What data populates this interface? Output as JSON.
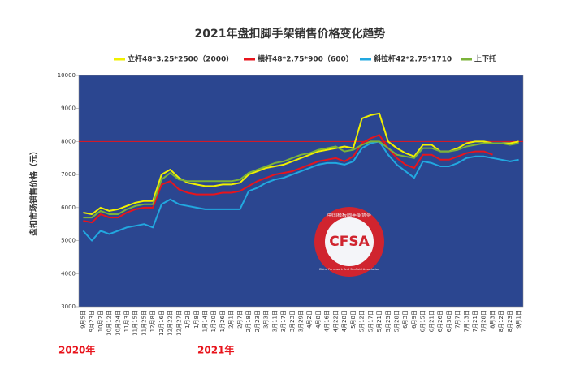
{
  "chart_data": {
    "type": "line",
    "title": "2021年盘扣脚手架销售价格变化趋势",
    "y_label": "盘扣市场销售价格（元）",
    "categories": [
      "9月5日",
      "9月23日",
      "10月2日",
      "10月12日",
      "10月24日",
      "11月3日",
      "11月15日",
      "11月25日",
      "12月8日",
      "12月16日",
      "12月22日",
      "12月27日",
      "1月2日",
      "1月8日",
      "1月14日",
      "1月20日",
      "1月26日",
      "2月1日",
      "2月7日",
      "2月18日",
      "2月23日",
      "3月3日",
      "3月11日",
      "3月17日",
      "3月23日",
      "3月29日",
      "4月2日",
      "4月8日",
      "4月16日",
      "4月22日",
      "4月28日",
      "5月8日",
      "5月12日",
      "5月17日",
      "5月21日",
      "5月25日",
      "5月28日",
      "6月3日",
      "6月9日",
      "6月15日",
      "6月21日",
      "6月26日",
      "6月30日",
      "7月7日",
      "7月13日",
      "7月21日",
      "7月28日",
      "8月3日",
      "8月12日",
      "8月23日",
      "9月1日"
    ],
    "series": [
      {
        "name": "立杆48*3.25*2500（2000）",
        "color": "#f0f000",
        "values": [
          5850,
          5800,
          6000,
          5900,
          5950,
          6050,
          6150,
          6200,
          6200,
          7000,
          7150,
          6900,
          6750,
          6700,
          6650,
          6650,
          6700,
          6700,
          6750,
          7000,
          7100,
          7200,
          7250,
          7300,
          7400,
          7500,
          7600,
          7700,
          7750,
          7800,
          7850,
          7800,
          8700,
          8800,
          8850,
          8000,
          7800,
          7650,
          7550,
          7900,
          7900,
          7700,
          7700,
          7800,
          7950,
          8000,
          8000,
          7950,
          7950,
          7950,
          8000
        ]
      },
      {
        "name": "横杆48*2.75*900（600）",
        "color": "#e8141c",
        "values": [
          5600,
          5550,
          5800,
          5700,
          5700,
          5850,
          5950,
          6000,
          6000,
          6700,
          6800,
          6550,
          6450,
          6400,
          6400,
          6400,
          6450,
          6450,
          6500,
          6650,
          6800,
          6900,
          7000,
          7050,
          7100,
          7200,
          7300,
          7400,
          7450,
          7500,
          7400,
          7550,
          7950,
          8100,
          8200,
          7800,
          7500,
          7300,
          7200,
          7600,
          7600,
          7450,
          7450,
          7550,
          7650,
          7700,
          7700,
          7600,
          null,
          null,
          null
        ]
      },
      {
        "name": "斜拉杆42*2.75*1710",
        "color": "#22a8e0",
        "values": [
          5300,
          5000,
          5300,
          5200,
          5300,
          5400,
          5450,
          5500,
          5400,
          6100,
          6250,
          6100,
          6050,
          6000,
          5950,
          5950,
          5950,
          5950,
          5950,
          6500,
          6600,
          6750,
          6850,
          6900,
          7000,
          7100,
          7200,
          7300,
          7350,
          7350,
          7300,
          7400,
          7800,
          7950,
          8000,
          7600,
          7300,
          7100,
          6900,
          7400,
          7350,
          7250,
          7250,
          7350,
          7500,
          7550,
          7550,
          7500,
          7450,
          7400,
          7450
        ]
      },
      {
        "name": "上下托",
        "color": "#7bb33a",
        "values": [
          5700,
          5700,
          5900,
          5800,
          5800,
          5950,
          6050,
          6100,
          6100,
          6850,
          7050,
          6850,
          6800,
          6800,
          6800,
          6800,
          6800,
          6800,
          6850,
          7050,
          7150,
          7250,
          7350,
          7400,
          7500,
          7600,
          7650,
          7750,
          7800,
          7850,
          7700,
          7750,
          7900,
          8000,
          8000,
          7800,
          7600,
          7550,
          7500,
          7800,
          7800,
          7700,
          7700,
          7750,
          7850,
          7900,
          7950,
          7950,
          7950,
          7900,
          7950
        ]
      }
    ],
    "reference_line": {
      "value": 8000,
      "color": "#e8141c"
    },
    "ylim": [
      3000,
      10000
    ],
    "yticks": [
      3000,
      4000,
      5000,
      6000,
      7000,
      8000,
      9000,
      10000
    ],
    "plot_background": "#2b4690",
    "legend": "top",
    "annotations": [
      "2020年",
      "2021年"
    ],
    "watermark": {
      "ring_text": "中国模板脚手架协会",
      "logo": "CFSA",
      "subtitle": "China Formwork And Scaffold Association"
    }
  }
}
